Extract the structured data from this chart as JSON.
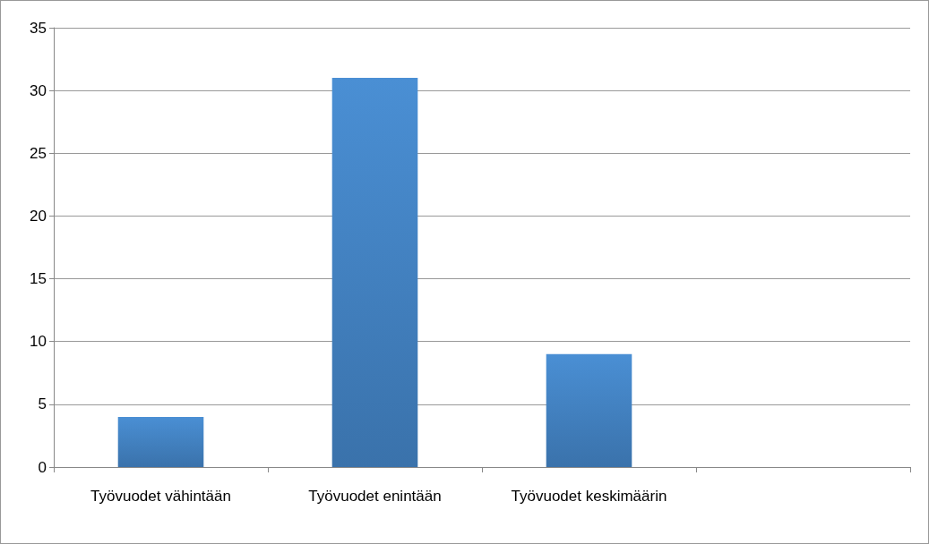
{
  "chart_data": {
    "type": "bar",
    "categories": [
      "Työvuodet vähintään",
      "Työvuodet enintään",
      "Työvuodet keskimäärin",
      null
    ],
    "values": [
      4,
      31,
      9,
      null
    ],
    "color": "#4a8fd4",
    "ylim": [
      0,
      35
    ],
    "yticks": [
      0,
      5,
      10,
      15,
      20,
      25,
      30,
      35
    ],
    "grid": "y"
  }
}
